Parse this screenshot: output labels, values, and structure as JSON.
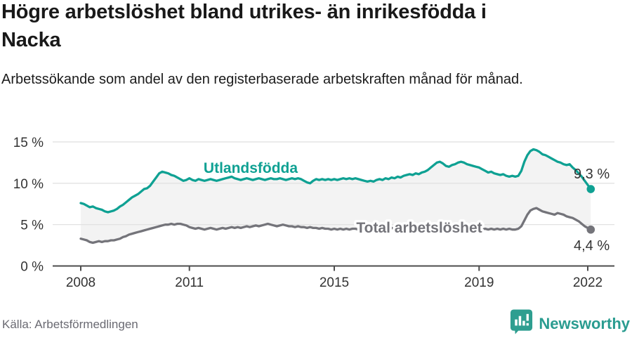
{
  "header": {
    "title": "Högre arbetslöshet bland utrikes- än inrikesfödda i Nacka",
    "subtitle": "Arbetssökande som andel av den registerbaserade arbetskraften månad för månad."
  },
  "footer": {
    "source": "Källa: Arbetsförmedlingen",
    "brand_name": "Newsworthy",
    "brand_color": "#2a9c90",
    "brand_icon": "newsworthy-speech-bubble-bar-chart-icon"
  },
  "chart_data": {
    "type": "line",
    "title": "Högre arbetslöshet bland utrikes- än inrikesfödda i Nacka",
    "xlabel": "",
    "ylabel": "",
    "x_unit": "month",
    "x_start": "2008-01",
    "x_end": "2022-02",
    "ylim": [
      0,
      16.5
    ],
    "grid": true,
    "grid_color": "#e2e2e2",
    "axis_color": "#4d4d4d",
    "tick_label_color": "#333333",
    "fill_between_color": "#f3f3f3",
    "x_ticks": [
      {
        "year": 2008,
        "label": "2008"
      },
      {
        "year": 2011,
        "label": "2011"
      },
      {
        "year": 2015,
        "label": "2015"
      },
      {
        "year": 2019,
        "label": "2019"
      },
      {
        "year": 2022,
        "label": "2022"
      }
    ],
    "y_ticks": [
      {
        "value": 0,
        "label": "0 %"
      },
      {
        "value": 5,
        "label": "5 %"
      },
      {
        "value": 10,
        "label": "10 %"
      },
      {
        "value": 15,
        "label": "15 %"
      }
    ],
    "series": [
      {
        "name": "Utlandsfödda",
        "color": "#0fa193",
        "end_label": "9,3 %",
        "end_value": 9.3,
        "values": [
          7.6,
          7.5,
          7.3,
          7.1,
          7.2,
          7.0,
          6.9,
          6.8,
          6.6,
          6.5,
          6.6,
          6.7,
          6.9,
          7.2,
          7.4,
          7.7,
          8.0,
          8.3,
          8.5,
          8.7,
          9.0,
          9.3,
          9.4,
          9.7,
          10.2,
          10.7,
          11.2,
          11.4,
          11.3,
          11.2,
          11.0,
          10.9,
          10.7,
          10.5,
          10.3,
          10.4,
          10.6,
          10.4,
          10.3,
          10.5,
          10.4,
          10.3,
          10.4,
          10.5,
          10.4,
          10.3,
          10.4,
          10.5,
          10.6,
          10.7,
          10.8,
          10.6,
          10.5,
          10.4,
          10.5,
          10.6,
          10.5,
          10.4,
          10.5,
          10.6,
          10.5,
          10.4,
          10.5,
          10.6,
          10.5,
          10.5,
          10.6,
          10.5,
          10.4,
          10.5,
          10.6,
          10.5,
          10.6,
          10.5,
          10.3,
          10.1,
          10.0,
          10.3,
          10.5,
          10.4,
          10.5,
          10.4,
          10.5,
          10.4,
          10.5,
          10.4,
          10.5,
          10.6,
          10.5,
          10.6,
          10.5,
          10.6,
          10.5,
          10.4,
          10.3,
          10.2,
          10.3,
          10.2,
          10.4,
          10.5,
          10.4,
          10.6,
          10.5,
          10.7,
          10.6,
          10.8,
          10.7,
          10.9,
          11.0,
          11.1,
          11.0,
          11.2,
          11.1,
          11.3,
          11.4,
          11.6,
          11.9,
          12.2,
          12.5,
          12.6,
          12.4,
          12.1,
          12.0,
          12.2,
          12.3,
          12.5,
          12.6,
          12.5,
          12.3,
          12.2,
          12.1,
          12.0,
          11.9,
          11.7,
          11.5,
          11.3,
          11.4,
          11.2,
          11.1,
          11.0,
          11.1,
          10.9,
          10.8,
          10.9,
          10.8,
          10.9,
          11.5,
          12.6,
          13.4,
          13.9,
          14.1,
          14.0,
          13.8,
          13.5,
          13.4,
          13.2,
          13.0,
          12.8,
          12.6,
          12.5,
          12.3,
          12.2,
          12.3,
          11.9,
          11.6,
          11.2,
          10.8,
          10.3,
          9.8,
          9.3
        ]
      },
      {
        "name": "Total arbetslöshet",
        "color": "#74747a",
        "end_label": "4,4 %",
        "end_value": 4.4,
        "values": [
          3.3,
          3.2,
          3.1,
          2.9,
          2.8,
          2.9,
          3.0,
          2.9,
          3.0,
          3.0,
          3.1,
          3.1,
          3.2,
          3.3,
          3.5,
          3.6,
          3.8,
          3.9,
          4.0,
          4.1,
          4.2,
          4.3,
          4.4,
          4.5,
          4.6,
          4.7,
          4.8,
          4.9,
          5.0,
          5.0,
          5.1,
          5.0,
          5.1,
          5.1,
          5.0,
          4.9,
          4.7,
          4.6,
          4.5,
          4.6,
          4.5,
          4.4,
          4.5,
          4.6,
          4.5,
          4.4,
          4.5,
          4.6,
          4.5,
          4.6,
          4.7,
          4.6,
          4.7,
          4.6,
          4.7,
          4.8,
          4.7,
          4.8,
          4.9,
          4.8,
          4.9,
          5.0,
          5.1,
          5.0,
          4.9,
          4.8,
          4.9,
          5.0,
          4.9,
          4.8,
          4.8,
          4.7,
          4.8,
          4.7,
          4.7,
          4.6,
          4.7,
          4.6,
          4.6,
          4.5,
          4.6,
          4.5,
          4.5,
          4.4,
          4.5,
          4.4,
          4.5,
          4.4,
          4.5,
          4.4,
          4.5,
          4.5,
          4.4,
          4.5,
          4.4,
          4.5,
          4.5,
          4.4,
          4.5,
          4.6,
          4.5,
          4.6,
          4.5,
          4.6,
          4.5,
          4.6,
          4.5,
          4.6,
          4.5,
          4.6,
          4.5,
          4.6,
          4.5,
          4.6,
          4.6,
          4.5,
          4.6,
          4.5,
          4.6,
          4.6,
          4.5,
          4.6,
          4.5,
          4.6,
          4.5,
          4.5,
          4.6,
          4.5,
          4.6,
          4.5,
          4.6,
          4.5,
          4.5,
          4.4,
          4.5,
          4.4,
          4.5,
          4.4,
          4.5,
          4.4,
          4.5,
          4.4,
          4.5,
          4.4,
          4.4,
          4.5,
          4.8,
          5.5,
          6.2,
          6.7,
          6.9,
          7.0,
          6.8,
          6.6,
          6.5,
          6.4,
          6.3,
          6.2,
          6.4,
          6.3,
          6.2,
          6.0,
          5.9,
          5.8,
          5.6,
          5.4,
          5.1,
          4.8,
          4.6,
          4.4
        ]
      }
    ],
    "legend_position": "inline-labels-on-lines"
  }
}
